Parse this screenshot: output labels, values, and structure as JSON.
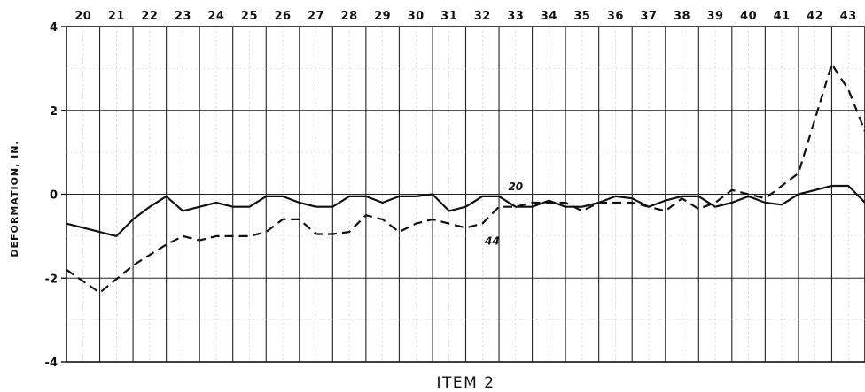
{
  "chart_data": {
    "type": "line",
    "title": "",
    "xlabel": "ITEM 2",
    "ylabel": "DEFORMATION, IN.",
    "ylim": [
      -4,
      4
    ],
    "yticks": [
      "-4",
      "-2",
      "0",
      "2",
      "4"
    ],
    "x_categories": [
      "20",
      "21",
      "22",
      "23",
      "24",
      "25",
      "26",
      "27",
      "28",
      "29",
      "30",
      "31",
      "32",
      "33",
      "34",
      "35",
      "36",
      "37",
      "38",
      "39",
      "40",
      "41",
      "42",
      "43"
    ],
    "grid": true,
    "series": [
      {
        "name": "20",
        "style": "solid",
        "points": [
          [
            20,
            -0.7
          ],
          [
            21,
            -0.9
          ],
          [
            21.5,
            -1.0
          ],
          [
            22,
            -0.6
          ],
          [
            22.5,
            -0.3
          ],
          [
            23,
            -0.05
          ],
          [
            23.5,
            -0.4
          ],
          [
            24,
            -0.3
          ],
          [
            24.5,
            -0.2
          ],
          [
            25,
            -0.3
          ],
          [
            25.5,
            -0.3
          ],
          [
            26,
            -0.05
          ],
          [
            26.5,
            -0.05
          ],
          [
            27,
            -0.2
          ],
          [
            27.5,
            -0.3
          ],
          [
            28,
            -0.3
          ],
          [
            28.5,
            -0.05
          ],
          [
            29,
            -0.05
          ],
          [
            29.5,
            -0.2
          ],
          [
            30,
            -0.05
          ],
          [
            30.5,
            -0.05
          ],
          [
            31,
            0.0
          ],
          [
            31.5,
            -0.4
          ],
          [
            32,
            -0.3
          ],
          [
            32.5,
            -0.05
          ],
          [
            33,
            -0.05
          ],
          [
            33.5,
            -0.3
          ],
          [
            34,
            -0.3
          ],
          [
            34.5,
            -0.15
          ],
          [
            35,
            -0.3
          ],
          [
            35.5,
            -0.3
          ],
          [
            36,
            -0.2
          ],
          [
            36.5,
            -0.05
          ],
          [
            37,
            -0.1
          ],
          [
            37.5,
            -0.3
          ],
          [
            38,
            -0.15
          ],
          [
            38.5,
            -0.05
          ],
          [
            39,
            -0.05
          ],
          [
            39.5,
            -0.3
          ],
          [
            40,
            -0.2
          ],
          [
            40.5,
            -0.05
          ],
          [
            41,
            -0.2
          ],
          [
            41.5,
            -0.25
          ],
          [
            42,
            0.0
          ],
          [
            42.5,
            0.1
          ],
          [
            43,
            0.2
          ],
          [
            43.5,
            0.2
          ],
          [
            44,
            -0.2
          ]
        ]
      },
      {
        "name": "44",
        "style": "dashed",
        "points": [
          [
            20,
            -1.8
          ],
          [
            21,
            -2.35
          ],
          [
            22,
            -1.7
          ],
          [
            23,
            -1.2
          ],
          [
            23.5,
            -1.0
          ],
          [
            24,
            -1.1
          ],
          [
            24.5,
            -1.0
          ],
          [
            25,
            -1.0
          ],
          [
            25.5,
            -1.0
          ],
          [
            26,
            -0.9
          ],
          [
            26.5,
            -0.6
          ],
          [
            27,
            -0.6
          ],
          [
            27.5,
            -0.95
          ],
          [
            28,
            -0.95
          ],
          [
            28.5,
            -0.9
          ],
          [
            29,
            -0.5
          ],
          [
            29.5,
            -0.6
          ],
          [
            30,
            -0.9
          ],
          [
            30.5,
            -0.7
          ],
          [
            31,
            -0.6
          ],
          [
            31.5,
            -0.7
          ],
          [
            32,
            -0.8
          ],
          [
            32.5,
            -0.7
          ],
          [
            33,
            -0.3
          ],
          [
            33.5,
            -0.3
          ],
          [
            34,
            -0.2
          ],
          [
            34.5,
            -0.2
          ],
          [
            35,
            -0.2
          ],
          [
            35.5,
            -0.4
          ],
          [
            36,
            -0.2
          ],
          [
            36.5,
            -0.2
          ],
          [
            37,
            -0.2
          ],
          [
            37.5,
            -0.3
          ],
          [
            38,
            -0.4
          ],
          [
            38.5,
            -0.1
          ],
          [
            39,
            -0.35
          ],
          [
            39.5,
            -0.2
          ],
          [
            40,
            0.1
          ],
          [
            41,
            -0.1
          ],
          [
            42,
            0.5
          ],
          [
            43,
            3.1
          ],
          [
            43.5,
            2.5
          ],
          [
            44,
            1.5
          ]
        ]
      }
    ],
    "annotations": [
      {
        "text": "20",
        "x": 33.5,
        "y": 0.1
      },
      {
        "text": "44",
        "x": 32.8,
        "y": -1.2
      }
    ]
  }
}
